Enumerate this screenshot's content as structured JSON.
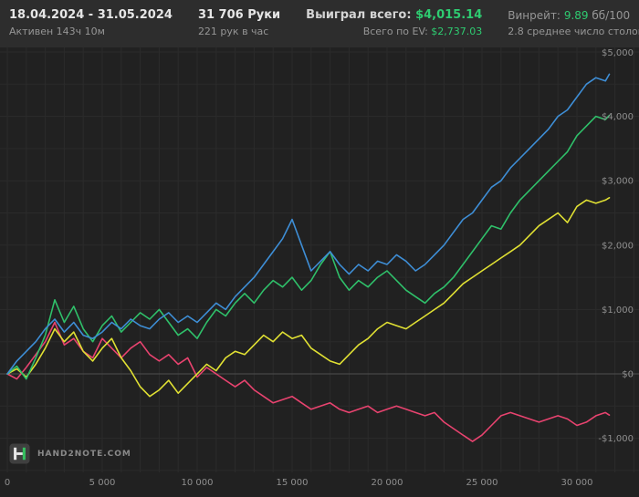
{
  "header": {
    "date_range": "18.04.2024 - 31.05.2024",
    "active_time": "Активен 143ч 10м",
    "hands_count": "31 706 Руки",
    "hands_per_hour": "221 рук в час",
    "total_won_label": "Выиграл всего:",
    "total_won_value": "$4,015.14",
    "ev_label": "Всего по EV:",
    "ev_value": "$2,737.03",
    "winrate_label": "Винрейт:",
    "winrate_value": "9.89",
    "winrate_unit": "бб/100",
    "avg_tables": "2.8 среднее число столов"
  },
  "footer": {
    "logo_text": "HAND2NOTE.COM"
  },
  "colors": {
    "header_bg": "#2d2d2d",
    "chart_bg": "#212121",
    "grid": "#2b2b2b",
    "zero_line": "#4e4e4e",
    "axis_text": "#8f8f8f",
    "text_primary": "#e6e6e6",
    "text_secondary": "#969696",
    "green": "#2ecc71"
  },
  "chart_data": {
    "type": "line",
    "title": "",
    "xlabel": "",
    "ylabel": "",
    "xlim": [
      0,
      33270
    ],
    "ylim": [
      -1912,
      5070
    ],
    "grid": {
      "x_step": 1000,
      "y_step": 500
    },
    "legend_position": "none",
    "x_ticks": [
      0,
      5000,
      10000,
      15000,
      20000,
      25000,
      30000
    ],
    "x_tick_labels": [
      "0",
      "5 000",
      "10 000",
      "15 000",
      "20 000",
      "25 000",
      "30 000"
    ],
    "y_ticks": [
      5000,
      4000,
      3000,
      2000,
      1000,
      0,
      -1000
    ],
    "y_tick_labels": [
      "$5,000",
      "$4,000",
      "$3,000",
      "$2,000",
      "$1,000",
      "$0",
      "-$1,000"
    ],
    "x": [
      0,
      500,
      1000,
      1500,
      2000,
      2500,
      3000,
      3500,
      4000,
      4500,
      5000,
      5500,
      6000,
      6500,
      7000,
      7500,
      8000,
      8500,
      9000,
      9500,
      10000,
      10500,
      11000,
      11500,
      12000,
      12500,
      13000,
      13500,
      14000,
      14500,
      15000,
      15500,
      16000,
      16500,
      17000,
      17500,
      18000,
      18500,
      19000,
      19500,
      20000,
      20500,
      21000,
      21500,
      22000,
      22500,
      23000,
      23500,
      24000,
      24500,
      25000,
      25500,
      26000,
      26500,
      27000,
      27500,
      28000,
      28500,
      29000,
      29500,
      30000,
      30500,
      31000,
      31500,
      31706
    ],
    "series": [
      {
        "name": "pink-line",
        "color": "#e8436f",
        "final_value": -640,
        "values": [
          0,
          -80,
          100,
          300,
          500,
          800,
          450,
          550,
          350,
          250,
          550,
          400,
          250,
          400,
          500,
          300,
          200,
          300,
          150,
          250,
          -50,
          100,
          0,
          -100,
          -200,
          -100,
          -250,
          -350,
          -450,
          -400,
          -350,
          -450,
          -550,
          -500,
          -450,
          -550,
          -600,
          -550,
          -500,
          -600,
          -550,
          -500,
          -550,
          -600,
          -650,
          -600,
          -750,
          -850,
          -950,
          -1050,
          -950,
          -800,
          -650,
          -600,
          -650,
          -700,
          -750,
          -700,
          -650,
          -700,
          -800,
          -750,
          -650,
          -600,
          -640
        ]
      },
      {
        "name": "yellow-line",
        "color": "#e0e033",
        "final_value": 2737,
        "values": [
          0,
          80,
          -50,
          150,
          400,
          700,
          500,
          650,
          350,
          200,
          400,
          550,
          250,
          50,
          -200,
          -350,
          -250,
          -100,
          -300,
          -150,
          0,
          150,
          50,
          250,
          350,
          300,
          450,
          600,
          500,
          650,
          550,
          600,
          400,
          300,
          200,
          150,
          300,
          450,
          550,
          700,
          800,
          750,
          700,
          800,
          900,
          1000,
          1100,
          1250,
          1400,
          1500,
          1600,
          1700,
          1800,
          1900,
          2000,
          2150,
          2300,
          2400,
          2500,
          2350,
          2600,
          2700,
          2650,
          2700,
          2737
        ]
      },
      {
        "name": "green-line",
        "color": "#2fc06a",
        "final_value": 4015,
        "values": [
          0,
          120,
          -80,
          250,
          600,
          1150,
          800,
          1050,
          700,
          500,
          750,
          900,
          650,
          800,
          950,
          850,
          1000,
          800,
          600,
          700,
          550,
          800,
          1000,
          900,
          1100,
          1250,
          1100,
          1300,
          1450,
          1350,
          1500,
          1300,
          1450,
          1700,
          1900,
          1500,
          1300,
          1450,
          1350,
          1500,
          1600,
          1450,
          1300,
          1200,
          1100,
          1250,
          1350,
          1500,
          1700,
          1900,
          2100,
          2300,
          2250,
          2500,
          2700,
          2850,
          3000,
          3150,
          3300,
          3450,
          3700,
          3850,
          4000,
          3950,
          4015
        ]
      },
      {
        "name": "blue-line",
        "color": "#3e8ed6",
        "final_value": 4655,
        "values": [
          0,
          200,
          350,
          500,
          700,
          850,
          650,
          800,
          600,
          550,
          650,
          800,
          700,
          850,
          750,
          700,
          850,
          950,
          800,
          900,
          800,
          950,
          1100,
          1000,
          1200,
          1350,
          1500,
          1700,
          1900,
          2100,
          2400,
          2000,
          1600,
          1750,
          1900,
          1700,
          1550,
          1700,
          1600,
          1750,
          1700,
          1850,
          1750,
          1600,
          1700,
          1850,
          2000,
          2200,
          2400,
          2500,
          2700,
          2900,
          3000,
          3200,
          3350,
          3500,
          3650,
          3800,
          4000,
          4100,
          4300,
          4500,
          4600,
          4550,
          4655
        ]
      }
    ]
  }
}
